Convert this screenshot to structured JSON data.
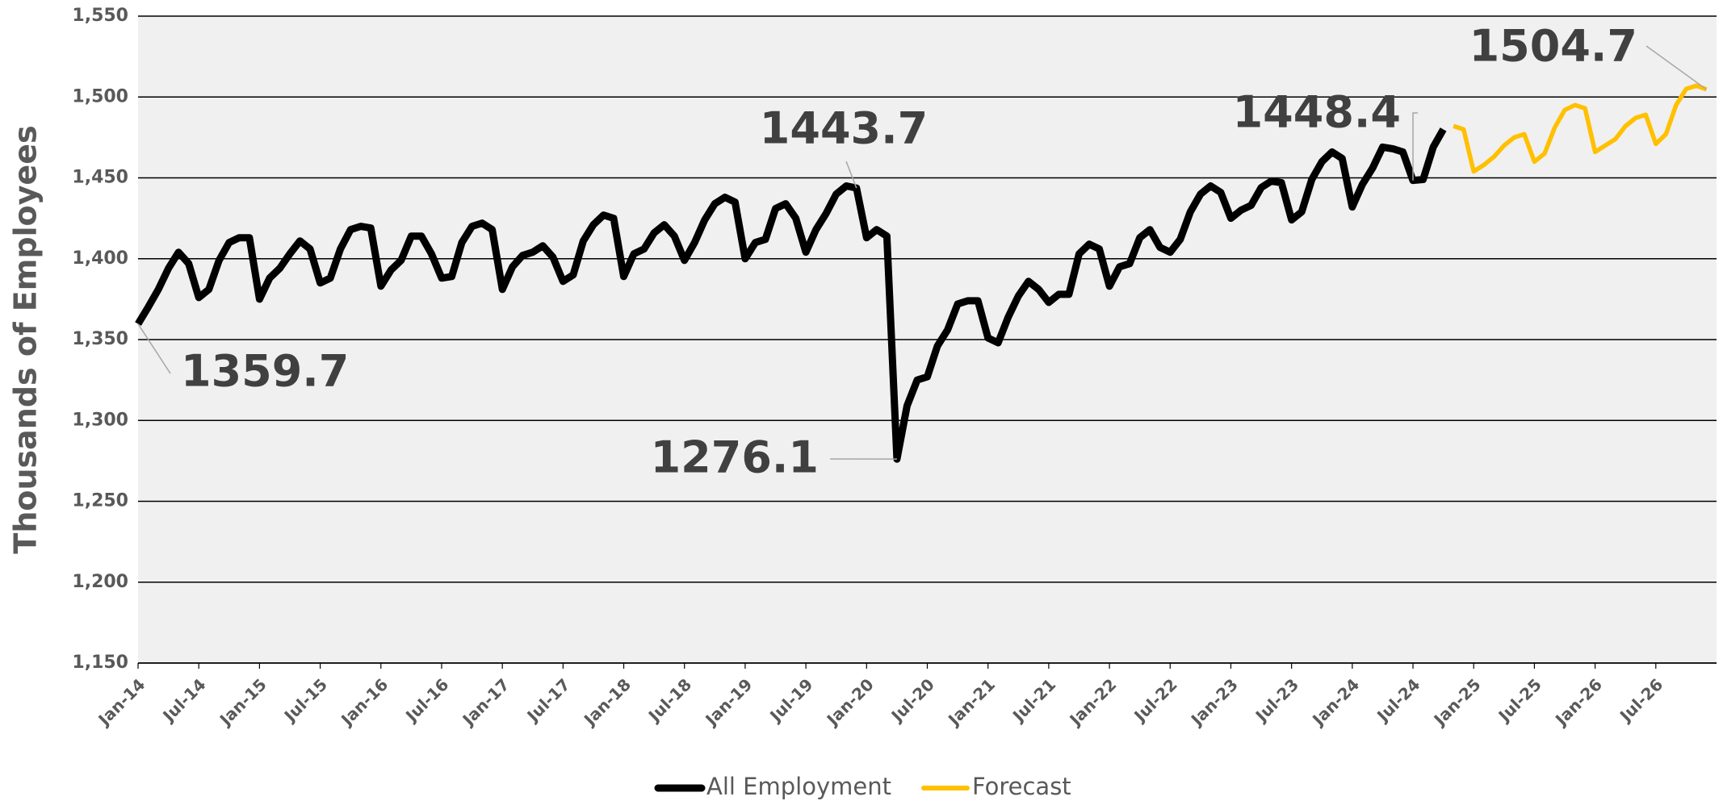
{
  "chart_data": {
    "type": "line",
    "y_label": "Thousands of Employees",
    "categories": [
      "Jan-14",
      null,
      null,
      null,
      null,
      null,
      "Jul-14",
      null,
      null,
      null,
      null,
      null,
      "Jan-15",
      null,
      null,
      null,
      null,
      null,
      "Jul-15",
      null,
      null,
      null,
      null,
      null,
      "Jan-16",
      null,
      null,
      null,
      null,
      null,
      "Jul-16",
      null,
      null,
      null,
      null,
      null,
      "Jan-17",
      null,
      null,
      null,
      null,
      null,
      "Jul-17",
      null,
      null,
      null,
      null,
      null,
      "Jan-18",
      null,
      null,
      null,
      null,
      null,
      "Jul-18",
      null,
      null,
      null,
      null,
      null,
      "Jan-19",
      null,
      null,
      null,
      null,
      null,
      "Jul-19",
      null,
      null,
      null,
      null,
      null,
      "Jan-20",
      null,
      null,
      null,
      null,
      null,
      "Jul-20",
      null,
      null,
      null,
      null,
      null,
      "Jan-21",
      null,
      null,
      null,
      null,
      null,
      "Jul-21",
      null,
      null,
      null,
      null,
      null,
      "Jan-22",
      null,
      null,
      null,
      null,
      null,
      "Jul-22",
      null,
      null,
      null,
      null,
      null,
      "Jan-23",
      null,
      null,
      null,
      null,
      null,
      "Jul-23",
      null,
      null,
      null,
      null,
      null,
      "Jan-24",
      null,
      null,
      null,
      null,
      null,
      "Jul-24",
      null,
      null,
      null,
      null,
      null,
      "Jan-25",
      null,
      null,
      null,
      null,
      null,
      "Jul-25",
      null,
      null,
      null,
      null,
      null,
      "Jan-26",
      null,
      null,
      null,
      null,
      null,
      "Jul-26",
      null,
      null,
      null,
      null,
      null
    ],
    "series": [
      {
        "name": "All Employment",
        "color": "#000000",
        "values": [
          1359.7,
          1370,
          1381,
          1394,
          1404,
          1397,
          1376,
          1381,
          1399,
          1410,
          1413,
          1413,
          1375,
          1388,
          1394,
          1403,
          1411,
          1406,
          1385,
          1388,
          1406,
          1418,
          1420,
          1419,
          1383,
          1393,
          1399,
          1414,
          1414,
          1403,
          1388,
          1389,
          1410,
          1420,
          1422,
          1418,
          1381,
          1395,
          1402,
          1404,
          1408,
          1401,
          1386,
          1390,
          1411,
          1421,
          1427,
          1425,
          1389,
          1403,
          1406,
          1416,
          1421,
          1414,
          1399,
          1410,
          1424,
          1434,
          1438,
          1435,
          1400,
          1410,
          1412,
          1431,
          1434,
          1425,
          1404,
          1418,
          1428,
          1440,
          1445,
          1443.7,
          1413,
          1418,
          1414,
          1276.1,
          1309,
          1325,
          1327,
          1346,
          1356,
          1372,
          1374,
          1374,
          1351,
          1348,
          1364,
          1377,
          1386,
          1381,
          1373,
          1378,
          1378,
          1403,
          1409,
          1406,
          1383,
          1395,
          1397,
          1413,
          1418,
          1407,
          1404,
          1412,
          1429,
          1440,
          1445,
          1441,
          1425,
          1430,
          1433,
          1444,
          1448,
          1447,
          1424,
          1429,
          1449,
          1460,
          1466,
          1462,
          1432,
          1446,
          1456,
          1469,
          1468,
          1466,
          1448.4,
          1449,
          1469,
          1480,
          null,
          null,
          null,
          null,
          null,
          null,
          null,
          null,
          null,
          null,
          null,
          null,
          null,
          null,
          null,
          null,
          null,
          null,
          null,
          null,
          null,
          null,
          null,
          null,
          null,
          null
        ],
        "value_labels": [
          "1359.7",
          null,
          null,
          null,
          null,
          null,
          null,
          null,
          null,
          null,
          null,
          null,
          null,
          null,
          null,
          null,
          null,
          null,
          null,
          null,
          null,
          null,
          null,
          null,
          null,
          null,
          null,
          null,
          null,
          null,
          null,
          null,
          null,
          null,
          null,
          null,
          null,
          null,
          null,
          null,
          null,
          null,
          null,
          null,
          null,
          null,
          null,
          null,
          null,
          null,
          null,
          null,
          null,
          null,
          null,
          null,
          null,
          null,
          null,
          null,
          null,
          null,
          null,
          null,
          null,
          null,
          null,
          null,
          null,
          null,
          null,
          "1443.7",
          null,
          null,
          null,
          "1276.1",
          null,
          null,
          null,
          null,
          null,
          null,
          null,
          null,
          null,
          null,
          null,
          null,
          null,
          null,
          null,
          null,
          null,
          null,
          null,
          null,
          null,
          null,
          null,
          null,
          null,
          null,
          null,
          null,
          null,
          null,
          null,
          null,
          null,
          null,
          null,
          null,
          null,
          null,
          null,
          null,
          null,
          null,
          null,
          null,
          null,
          null,
          null,
          null,
          null,
          null,
          "1448.4",
          null,
          null,
          null,
          null,
          null,
          null,
          null,
          null,
          null,
          null,
          null,
          null,
          null,
          null,
          null,
          null,
          null,
          null,
          null,
          null,
          null,
          null,
          null,
          null,
          null,
          null,
          null,
          null,
          null
        ]
      },
      {
        "name": "Forecast",
        "color": "#ffc000",
        "values": [
          null,
          null,
          null,
          null,
          null,
          null,
          null,
          null,
          null,
          null,
          null,
          null,
          null,
          null,
          null,
          null,
          null,
          null,
          null,
          null,
          null,
          null,
          null,
          null,
          null,
          null,
          null,
          null,
          null,
          null,
          null,
          null,
          null,
          null,
          null,
          null,
          null,
          null,
          null,
          null,
          null,
          null,
          null,
          null,
          null,
          null,
          null,
          null,
          null,
          null,
          null,
          null,
          null,
          null,
          null,
          null,
          null,
          null,
          null,
          null,
          null,
          null,
          null,
          null,
          null,
          null,
          null,
          null,
          null,
          null,
          null,
          null,
          null,
          null,
          null,
          null,
          null,
          null,
          null,
          null,
          null,
          null,
          null,
          null,
          null,
          null,
          null,
          null,
          null,
          null,
          null,
          null,
          null,
          null,
          null,
          null,
          null,
          null,
          null,
          null,
          null,
          null,
          null,
          null,
          null,
          null,
          null,
          null,
          null,
          null,
          null,
          null,
          null,
          null,
          null,
          null,
          null,
          null,
          null,
          null,
          null,
          null,
          null,
          null,
          null,
          null,
          null,
          null,
          null,
          null,
          1482,
          1480,
          1454,
          1458,
          1463,
          1470,
          1475,
          1477,
          1460,
          1465,
          1481,
          1492,
          1495,
          1493,
          1466,
          1470,
          1474,
          1482,
          1487,
          1489,
          1471,
          1477,
          1495,
          1505,
          1507,
          1504.7
        ],
        "value_labels": [
          null,
          null,
          null,
          null,
          null,
          null,
          null,
          null,
          null,
          null,
          null,
          null,
          null,
          null,
          null,
          null,
          null,
          null,
          null,
          null,
          null,
          null,
          null,
          null,
          null,
          null,
          null,
          null,
          null,
          null,
          null,
          null,
          null,
          null,
          null,
          null,
          null,
          null,
          null,
          null,
          null,
          null,
          null,
          null,
          null,
          null,
          null,
          null,
          null,
          null,
          null,
          null,
          null,
          null,
          null,
          null,
          null,
          null,
          null,
          null,
          null,
          null,
          null,
          null,
          null,
          null,
          null,
          null,
          null,
          null,
          null,
          null,
          null,
          null,
          null,
          null,
          null,
          null,
          null,
          null,
          null,
          null,
          null,
          null,
          null,
          null,
          null,
          null,
          null,
          null,
          null,
          null,
          null,
          null,
          null,
          null,
          null,
          null,
          null,
          null,
          null,
          null,
          null,
          null,
          null,
          null,
          null,
          null,
          null,
          null,
          null,
          null,
          null,
          null,
          null,
          null,
          null,
          null,
          null,
          null,
          null,
          null,
          null,
          null,
          null,
          null,
          null,
          null,
          null,
          null,
          null,
          null,
          null,
          null,
          null,
          null,
          null,
          null,
          null,
          null,
          null,
          null,
          null,
          null,
          null,
          null,
          null,
          null,
          null,
          null,
          null,
          null,
          null,
          null,
          null,
          "1504.7"
        ]
      }
    ],
    "ylim": [
      1150,
      1550
    ],
    "yticks": [
      {
        "value": 1150,
        "label": "1,150"
      },
      {
        "value": 1200,
        "label": "1,200"
      },
      {
        "value": 1250,
        "label": "1,250"
      },
      {
        "value": 1300,
        "label": "1,300"
      },
      {
        "value": 1350,
        "label": "1,350"
      },
      {
        "value": 1400,
        "label": "1,400"
      },
      {
        "value": 1450,
        "label": "1,450"
      },
      {
        "value": 1500,
        "label": "1,500"
      },
      {
        "value": 1550,
        "label": "1,550"
      }
    ],
    "grid": true,
    "legend": "bottom"
  }
}
